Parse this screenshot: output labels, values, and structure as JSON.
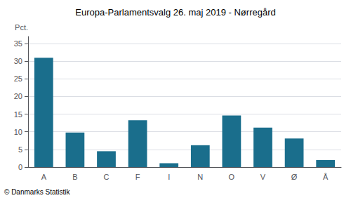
{
  "chart_data": {
    "type": "bar",
    "title": "Europa-Parlamentsvalg 26. maj 2019 - Nørregård",
    "ylabel": "Pct.",
    "annotations": [
      "© Danmarks Statistik"
    ],
    "categories": [
      "A",
      "B",
      "C",
      "F",
      "I",
      "N",
      "O",
      "V",
      "Ø",
      "Å"
    ],
    "values": [
      31.0,
      9.8,
      4.5,
      13.3,
      1.1,
      6.2,
      14.6,
      11.2,
      8.1,
      2.0
    ],
    "color": "#1a6e8c",
    "ylim": [
      0,
      37
    ],
    "yticks": [
      0,
      5,
      10,
      15,
      20,
      25,
      30,
      35
    ],
    "grid": true
  }
}
